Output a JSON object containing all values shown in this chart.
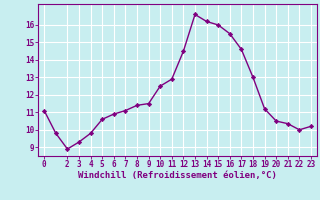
{
  "x": [
    0,
    1,
    2,
    3,
    4,
    5,
    6,
    7,
    8,
    9,
    10,
    11,
    12,
    13,
    14,
    15,
    16,
    17,
    18,
    19,
    20,
    21,
    22,
    23
  ],
  "y": [
    11.1,
    9.8,
    8.9,
    9.3,
    9.8,
    10.6,
    10.9,
    11.1,
    11.4,
    11.5,
    12.5,
    12.9,
    14.5,
    16.6,
    16.2,
    16.0,
    15.5,
    14.6,
    13.0,
    11.2,
    10.5,
    10.35,
    10.0,
    10.2
  ],
  "line_color": "#800080",
  "marker": "D",
  "markersize": 2.2,
  "linewidth": 1.0,
  "background_color": "#c8eef0",
  "grid_color": "#ffffff",
  "xlabel": "Windchill (Refroidissement éolien,°C)",
  "xlabel_color": "#800080",
  "tick_color": "#800080",
  "xlim": [
    -0.5,
    23.5
  ],
  "ylim": [
    8.5,
    17.2
  ],
  "xticks": [
    0,
    2,
    3,
    4,
    5,
    6,
    7,
    8,
    9,
    10,
    11,
    12,
    13,
    14,
    15,
    16,
    17,
    18,
    19,
    20,
    21,
    22,
    23
  ],
  "yticks": [
    9,
    10,
    11,
    12,
    13,
    14,
    15,
    16
  ],
  "tick_fontsize": 5.5,
  "xlabel_fontsize": 6.5
}
